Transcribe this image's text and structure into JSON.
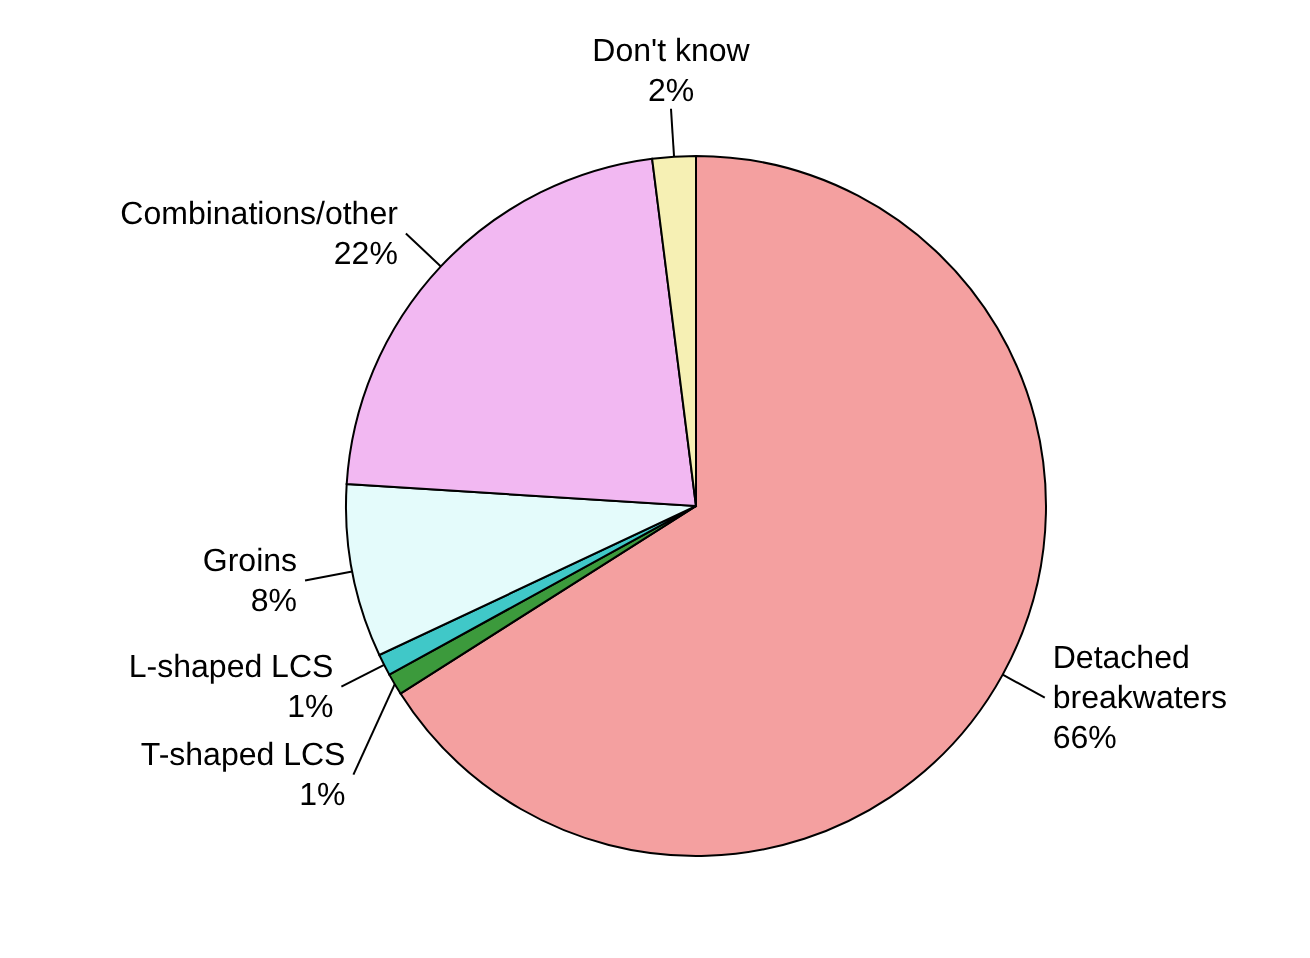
{
  "chart_data": {
    "type": "pie",
    "categories": [
      "Detached breakwaters",
      "T-shaped LCS",
      "L-shaped LCS",
      "Groins",
      "Combinations/other",
      "Don't know"
    ],
    "values": [
      66,
      1,
      1,
      8,
      22,
      2
    ],
    "colors": [
      "#f4a0a0",
      "#3c9a3c",
      "#40c8c8",
      "#e4fbfb",
      "#f2b8f2",
      "#f6f0b4"
    ],
    "value_labels": [
      "66%",
      "1%",
      "1%",
      "8%",
      "22%",
      "2%"
    ]
  }
}
